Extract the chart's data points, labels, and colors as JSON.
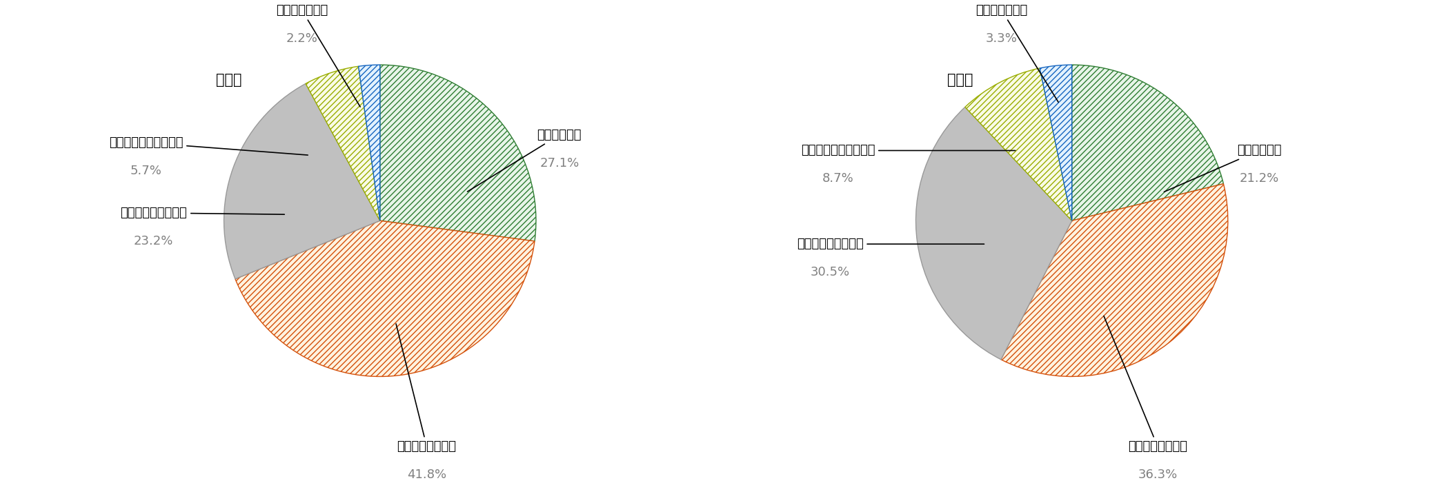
{
  "elementary": {
    "title": "小学生",
    "values": [
      27.1,
      41.8,
      23.2,
      5.7,
      2.2
    ],
    "labels": [
      "理解している",
      "やや理解している",
      "どちらともいえない",
      "あまり理解していない",
      "理解していない"
    ],
    "colors": [
      "#ffffff",
      "#ffffff",
      "#b0b0b0",
      "#ffffff",
      "#ffffff"
    ],
    "hatch": [
      "////",
      "////",
      "",
      "////",
      "////"
    ],
    "edgecolors": [
      "#2e7d32",
      "#e55c00",
      "#999999",
      "#c8d400",
      "#1565c0"
    ],
    "pct_labels": [
      "27.1%",
      "41.8%",
      "23.2%",
      "5.7%",
      "2.2%"
    ]
  },
  "middle": {
    "title": "中学生",
    "values": [
      21.2,
      36.3,
      30.5,
      8.7,
      3.3
    ],
    "labels": [
      "理解している",
      "やや理解している",
      "どちらともいえない",
      "あまり理解していない",
      "理解していない"
    ],
    "colors": [
      "#ffffff",
      "#ffffff",
      "#b0b0b0",
      "#ffffff",
      "#ffffff"
    ],
    "hatch": [
      "////",
      "////",
      "",
      "////",
      "////"
    ],
    "edgecolors": [
      "#2e7d32",
      "#e55c00",
      "#999999",
      "#c8d400",
      "#1565c0"
    ],
    "pct_labels": [
      "21.2%",
      "36.3%",
      "30.5%",
      "8.7%",
      "3.3%"
    ]
  },
  "background_color": "#ffffff",
  "label_fontsize": 13,
  "pct_fontsize": 13,
  "title_fontsize": 15,
  "annotation_fontsize": 14
}
